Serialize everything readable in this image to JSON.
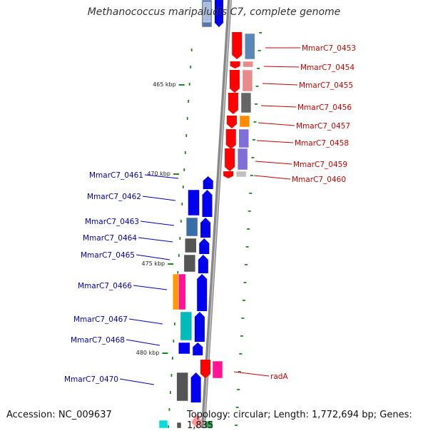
{
  "title": "Methanococcus maripaludis C7, complete genome",
  "accession": "Accession: NC_009637",
  "topology": "Topology: circular; Length: 1,772,694 bp; Genes: 1,835",
  "scale_marks": [
    "465 kbp",
    "470 kbp",
    "475 kbp",
    "480 kbp"
  ],
  "genes_right": [
    {
      "name": "MmarC7_0453",
      "color": "#cc0000"
    },
    {
      "name": "MmarC7_0454",
      "color": "#cc0000"
    },
    {
      "name": "MmarC7_0455",
      "color": "#cc0000"
    },
    {
      "name": "MmarC7_0456",
      "color": "#cc0000"
    },
    {
      "name": "MmarC7_0457",
      "color": "#cc0000"
    },
    {
      "name": "MmarC7_0458",
      "color": "#cc0000"
    },
    {
      "name": "MmarC7_0459",
      "color": "#cc0000"
    },
    {
      "name": "MmarC7_0460",
      "color": "#cc0000"
    },
    {
      "name": "radA",
      "color": "#cc0000"
    }
  ],
  "genes_left": [
    {
      "name": "MmarC7_0461",
      "color": "#0000bb"
    },
    {
      "name": "MmarC7_0462",
      "color": "#0000bb"
    },
    {
      "name": "MmarC7_0463",
      "color": "#0000bb"
    },
    {
      "name": "MmarC7_0464",
      "color": "#0000bb"
    },
    {
      "name": "MmarC7_0465",
      "color": "#0000bb"
    },
    {
      "name": "MmarC7_0466",
      "color": "#0000bb"
    },
    {
      "name": "MmarC7_0467",
      "color": "#0000bb"
    },
    {
      "name": "MmarC7_0468",
      "color": "#0000bb"
    },
    {
      "name": "MmarC7_0470",
      "color": "#0000bb"
    }
  ]
}
